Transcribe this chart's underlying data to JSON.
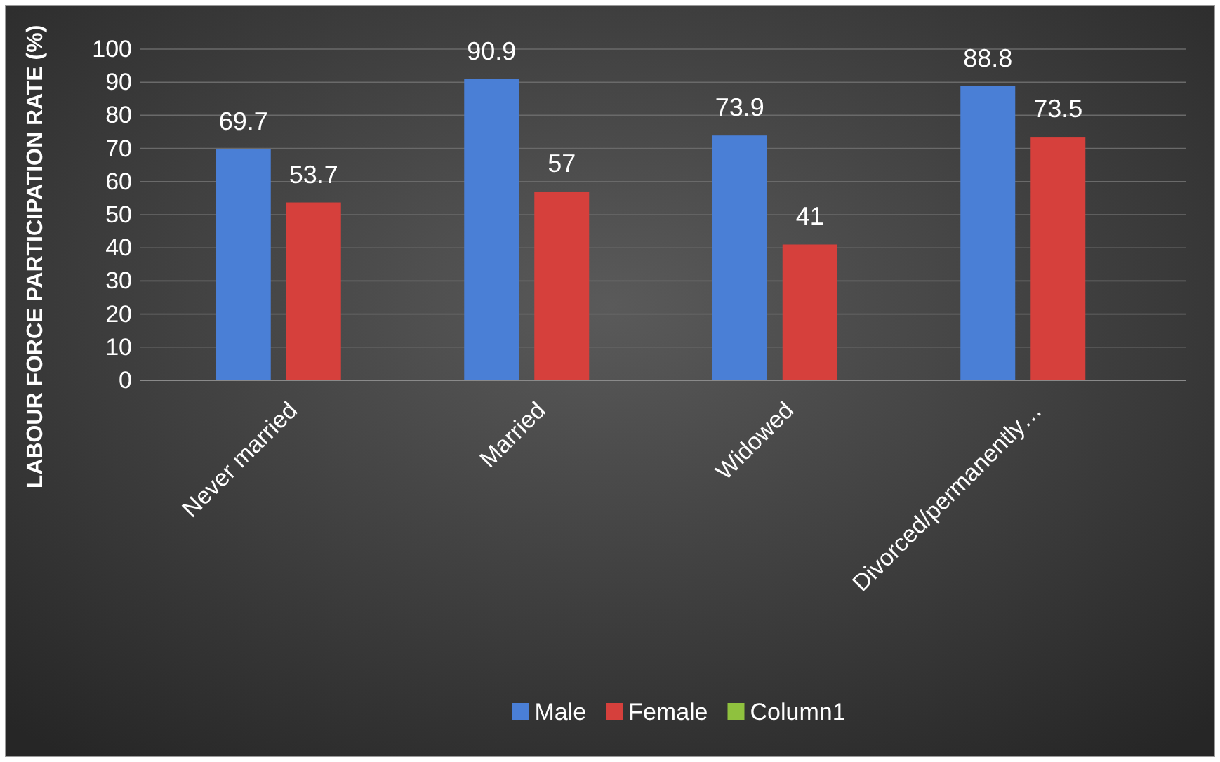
{
  "chart_data": {
    "type": "bar",
    "ylabel": "LABOUR FORCE PARTICIPATION RATE (%)",
    "categories": [
      "Never married",
      "Married",
      "Widowed",
      "Divorced/permanently…"
    ],
    "series": [
      {
        "name": "Male",
        "color": "#4a7fd6",
        "values": [
          69.7,
          90.9,
          73.9,
          88.8
        ]
      },
      {
        "name": "Female",
        "color": "#d6403c",
        "values": [
          53.7,
          57,
          41,
          73.5
        ]
      },
      {
        "name": "Column1",
        "color": "#8fc13e",
        "values": [
          null,
          null,
          null,
          null
        ]
      }
    ],
    "ylim": [
      0,
      100
    ],
    "yticks": [
      0,
      10,
      20,
      30,
      40,
      50,
      60,
      70,
      80,
      90,
      100
    ],
    "grid": "y",
    "legend": "bottom",
    "data_labels": true
  }
}
